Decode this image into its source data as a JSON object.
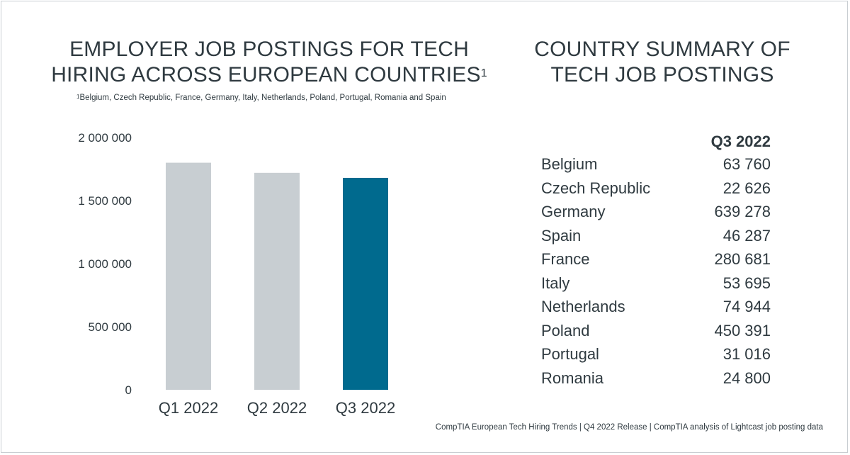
{
  "left_title_main": "EMPLOYER JOB POSTINGS FOR TECH HIRING ACROSS EUROPEAN COUNTRIES",
  "left_title_sup": "1",
  "footnote_marker": "1",
  "footnote_text": "Belgium, Czech Republic, France, Germany, Italy, Netherlands, Poland, Portugal, Romania and Spain",
  "right_title": "COUNTRY SUMMARY OF TECH JOB POSTINGS",
  "summary": {
    "column_header": "Q3 2022",
    "rows": [
      {
        "country": "Belgium",
        "value": "63 760"
      },
      {
        "country": "Czech Republic",
        "value": "22 626"
      },
      {
        "country": "Germany",
        "value": "639 278"
      },
      {
        "country": "Spain",
        "value": "46 287"
      },
      {
        "country": "France",
        "value": "280 681"
      },
      {
        "country": "Italy",
        "value": "53 695"
      },
      {
        "country": "Netherlands",
        "value": "74 944"
      },
      {
        "country": "Poland",
        "value": "450 391"
      },
      {
        "country": "Portugal",
        "value": "31 016"
      },
      {
        "country": "Romania",
        "value": "24 800"
      }
    ]
  },
  "source": "CompTIA European Tech Hiring Trends | Q4 2022 Release | CompTIA analysis of Lightcast job posting data",
  "chart_data": {
    "type": "bar",
    "categories": [
      "Q1 2022",
      "Q2 2022",
      "Q3 2022"
    ],
    "values": [
      1800000,
      1720000,
      1680000
    ],
    "colors": [
      "#c8ced2",
      "#c8ced2",
      "#006a8e"
    ],
    "ylim": [
      0,
      2000000
    ],
    "yticks": [
      0,
      500000,
      1000000,
      1500000,
      2000000
    ],
    "ytick_labels": [
      "0",
      "500 000",
      "1 000 000",
      "1 500 000",
      "2 000 000"
    ],
    "grid": false
  }
}
